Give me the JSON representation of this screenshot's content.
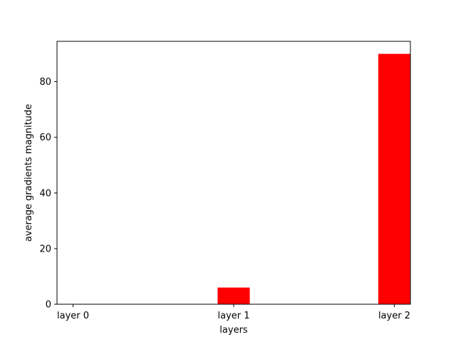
{
  "chart_data": {
    "type": "bar",
    "title": "",
    "xlabel": "layers",
    "ylabel": "average gradients magnitude",
    "categories": [
      "layer 0",
      "layer 1",
      "layer 2"
    ],
    "values": [
      0,
      6,
      90
    ],
    "ylim": [
      0,
      94.5
    ],
    "yticks": [
      0,
      20,
      40,
      60,
      80
    ],
    "bar_color": "#ff0000",
    "grid": false,
    "legend": "none"
  }
}
